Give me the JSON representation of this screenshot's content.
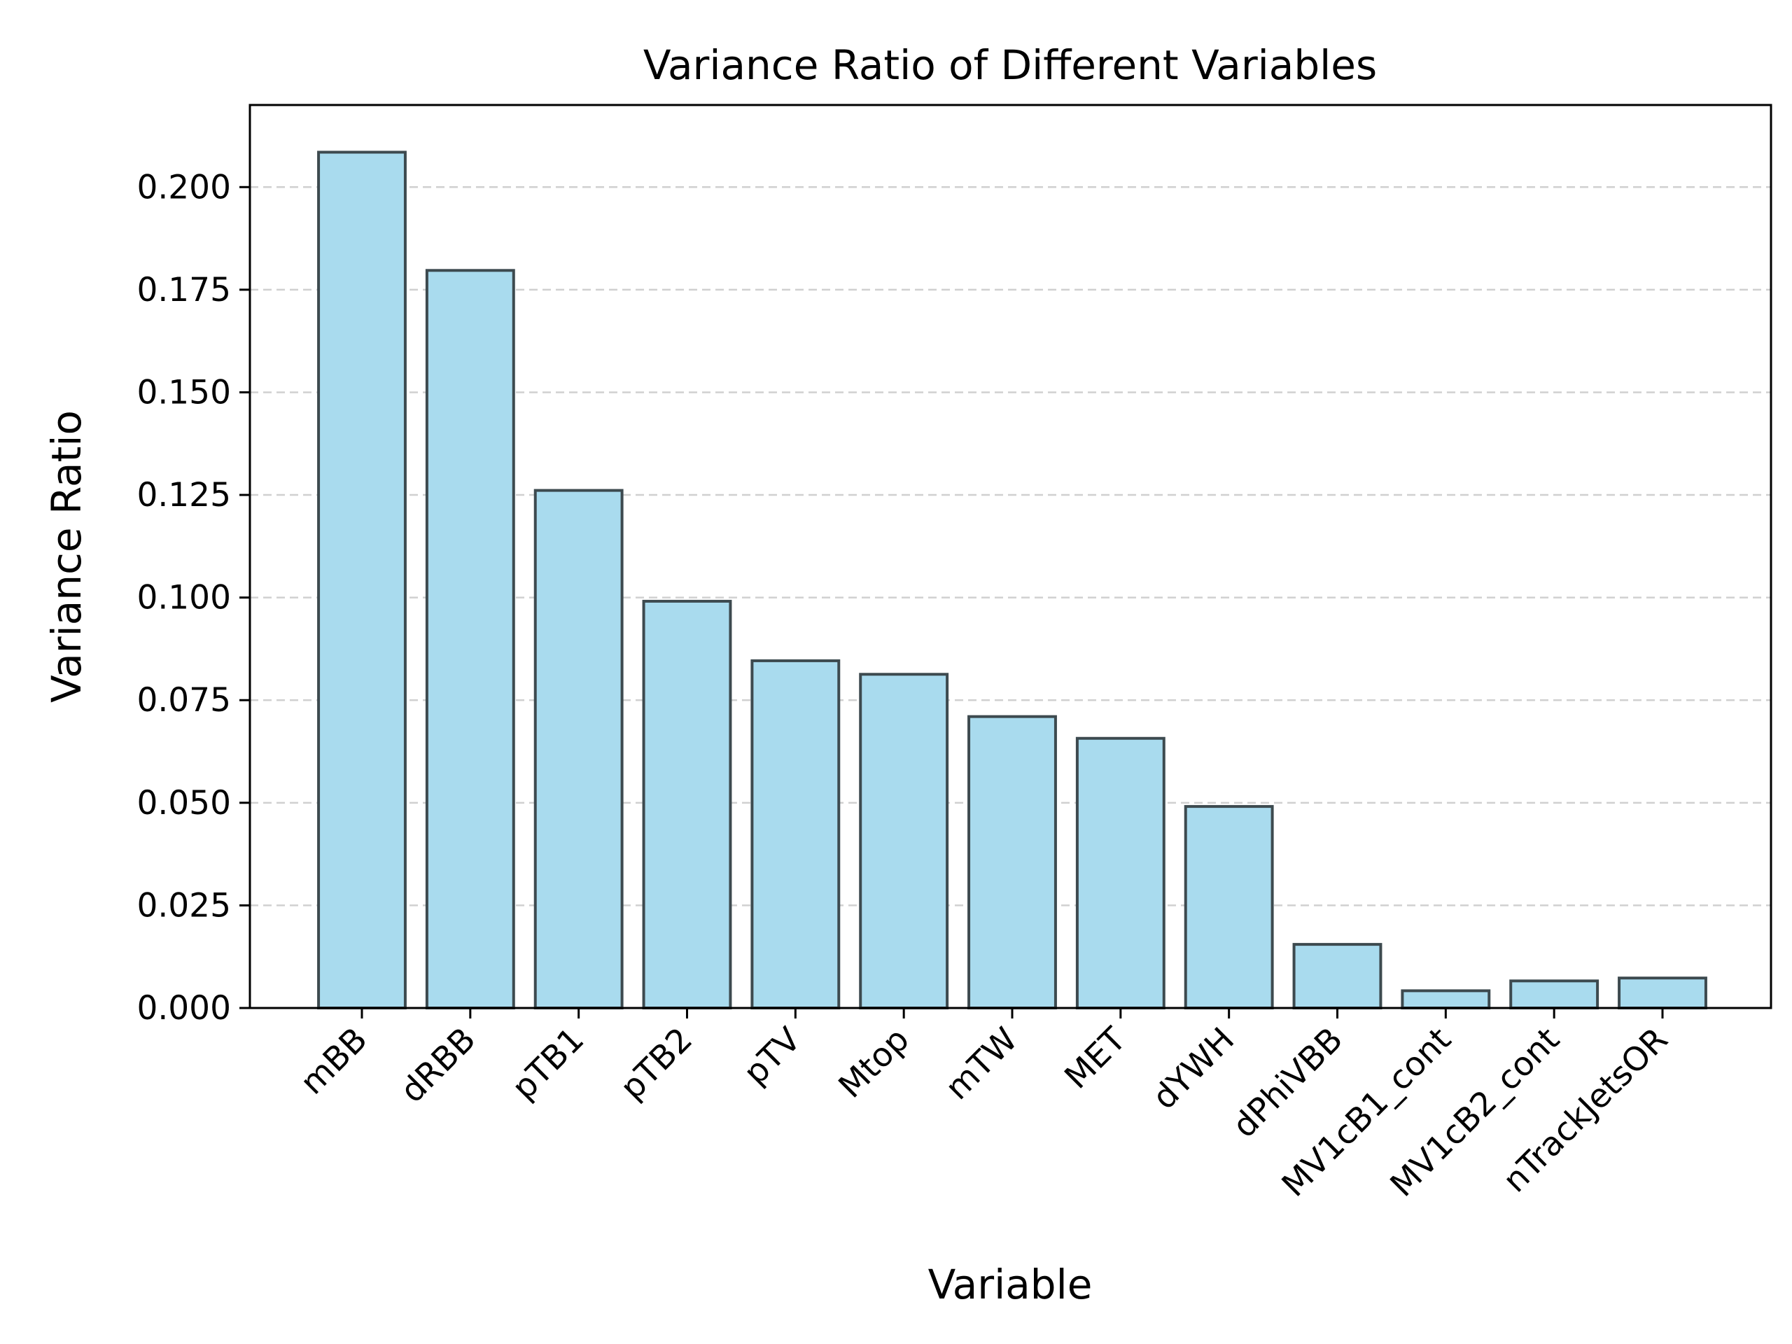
{
  "chart_data": {
    "type": "bar",
    "title": "Variance Ratio of Different Variables",
    "xlabel": "Variable",
    "ylabel": "Variance Ratio",
    "categories": [
      "mBB",
      "dRBB",
      "pTB1",
      "pTB2",
      "pTV",
      "Mtop",
      "mTW",
      "MET",
      "dYWH",
      "dPhiVBB",
      "MV1cB1_cont",
      "MV1cB2_cont",
      "nTrackJetsOR"
    ],
    "values": [
      0.2085,
      0.1797,
      0.1261,
      0.0991,
      0.0846,
      0.0813,
      0.071,
      0.0657,
      0.0491,
      0.0155,
      0.0042,
      0.0066,
      0.0073
    ],
    "ylim": [
      0,
      0.22
    ],
    "yticks": [
      "0.000",
      "0.025",
      "0.050",
      "0.075",
      "0.100",
      "0.125",
      "0.150",
      "0.175",
      "0.200"
    ],
    "ytick_values": [
      0,
      0.025,
      0.05,
      0.075,
      0.1,
      0.125,
      0.15,
      0.175,
      0.2
    ],
    "grid": "y, dashed",
    "legend": "none",
    "colors": {
      "bar_fill": "#a9dbee",
      "bar_edge": "#3d4a4f",
      "grid": "#d0d0d0"
    }
  }
}
